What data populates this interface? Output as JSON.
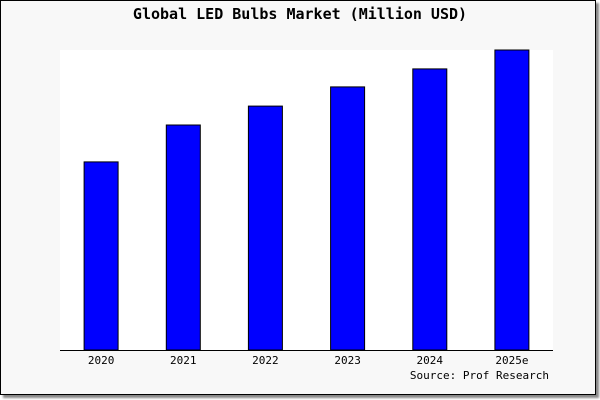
{
  "chart_data": {
    "type": "bar",
    "title": "Global LED Bulbs Market (Million USD)",
    "categories": [
      "2020",
      "2021",
      "2022",
      "2023",
      "2024",
      "2025e"
    ],
    "values": [
      62.7,
      75.0,
      81.3,
      87.7,
      93.7,
      100
    ],
    "ylim": [
      0,
      100
    ],
    "xlabel": "",
    "ylabel": "",
    "grid": false,
    "source": "Source: Prof Research",
    "colors": {
      "bar": "#0000ff",
      "bar_stroke": "#000000",
      "plot_bg": "#ffffff",
      "frame_bg": "#f8f8f8"
    }
  }
}
